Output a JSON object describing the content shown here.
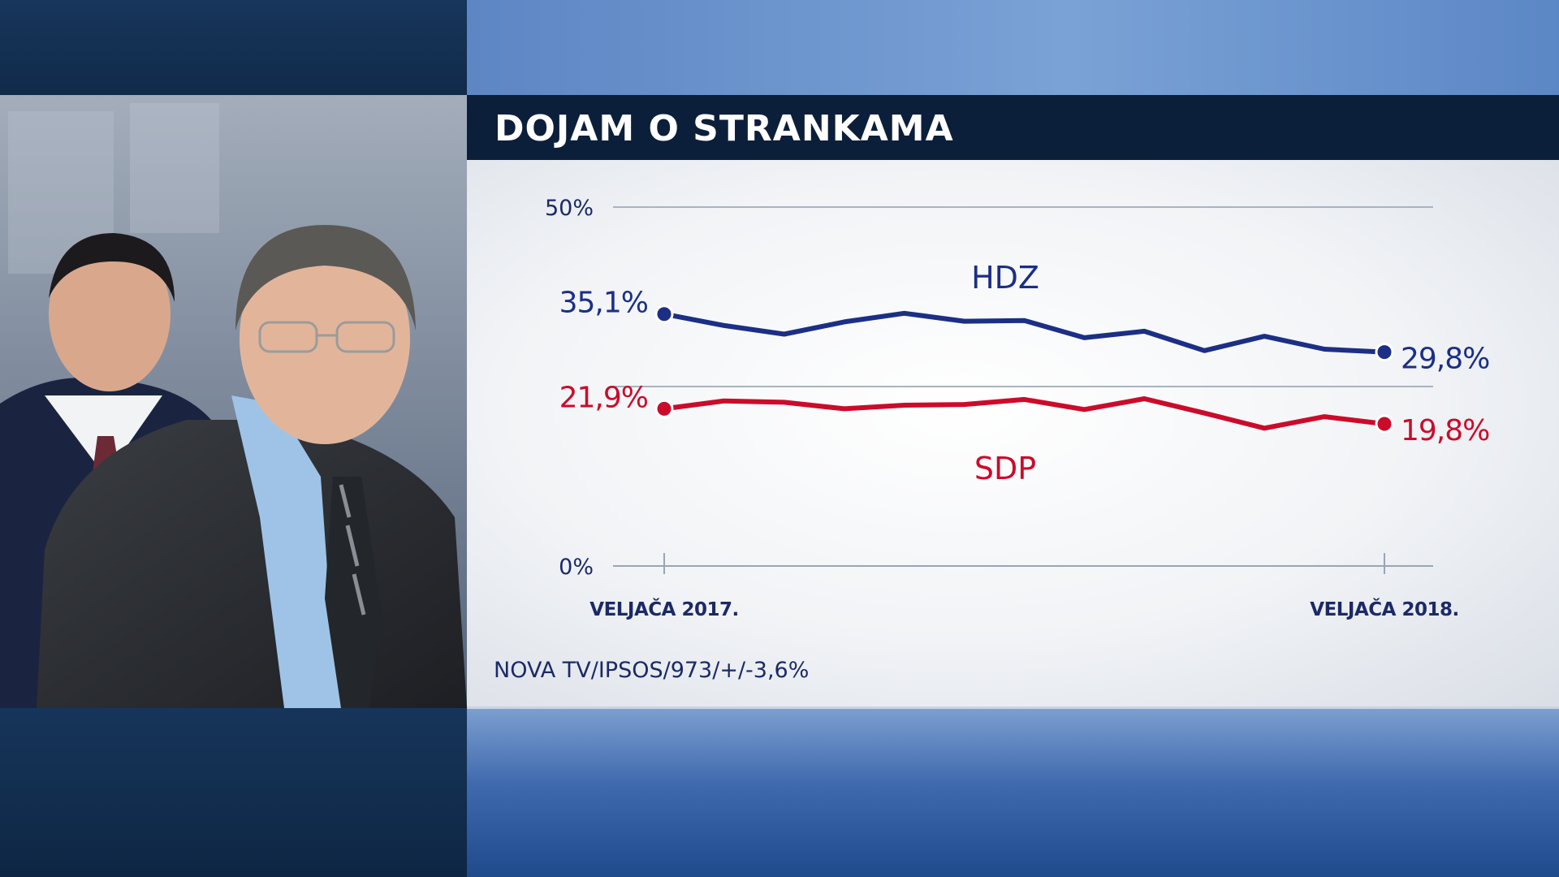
{
  "title": "DOJAM O STRANKAMA",
  "source": "NOVA TV/IPSOS/973/+/-3,6%",
  "chart_data": {
    "type": "line",
    "x_labels": [
      "VELJAČA 2017.",
      "VELJAČA 2018."
    ],
    "y_ticks": [
      {
        "value": 50,
        "label": "50%"
      },
      {
        "value": 0,
        "label": "0%"
      }
    ],
    "ylim": [
      0,
      50
    ],
    "grid": true,
    "series": [
      {
        "name": "HDZ",
        "color": "#1b2f86",
        "values": [
          35.1,
          33.5,
          32.3,
          34.0,
          35.2,
          34.1,
          34.2,
          31.8,
          32.7,
          30.0,
          32.0,
          30.2,
          29.8
        ],
        "start_label": "35,1%",
        "end_label": "29,8%"
      },
      {
        "name": "SDP",
        "color": "#cc0b2a",
        "values": [
          21.9,
          23.0,
          22.8,
          21.9,
          22.4,
          22.5,
          23.2,
          21.8,
          23.3,
          21.3,
          19.2,
          20.8,
          19.8
        ],
        "start_label": "21,9%",
        "end_label": "19,8%"
      }
    ]
  },
  "colors": {
    "title_bar": "#0c1f3a",
    "hdz": "#1b2f86",
    "sdp": "#cc0b2a",
    "axis_text": "#1b2a66"
  }
}
